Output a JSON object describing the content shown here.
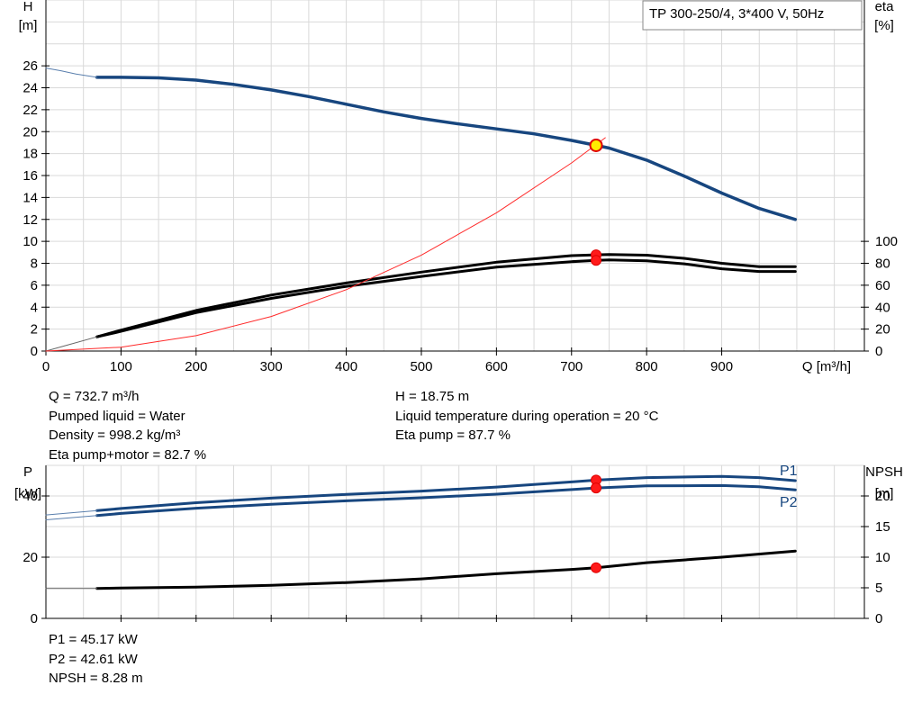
{
  "pump_title": "TP 300-250/4, 3*400 V, 50Hz",
  "chart_data": [
    {
      "type": "line",
      "title": "TP 300-250/4, 3*400 V, 50Hz",
      "xlabel": "Q [m³/h]",
      "x_ticks": [
        "0",
        "100",
        "200",
        "300",
        "400",
        "500",
        "600",
        "700",
        "800",
        "900"
      ],
      "xlim": [
        0,
        1090
      ],
      "ylabel_left": [
        "H",
        "[m]"
      ],
      "ylim_left": [
        0,
        32
      ],
      "y_ticks_left": [
        "0",
        "2",
        "4",
        "6",
        "8",
        "10",
        "12",
        "14",
        "16",
        "18",
        "20",
        "22",
        "24",
        "26"
      ],
      "ylabel_right": [
        "eta",
        "[%]"
      ],
      "ylim_right": [
        0,
        320
      ],
      "y_ticks_right": [
        "0",
        "20",
        "40",
        "60",
        "80",
        "100"
      ],
      "grid": true,
      "series": [
        {
          "key": "H",
          "color": "#17467f",
          "axis": "left",
          "x": [
            68,
            100,
            150,
            200,
            250,
            300,
            350,
            400,
            450,
            500,
            550,
            600,
            650,
            700,
            733,
            750,
            800,
            850,
            900,
            950,
            998
          ],
          "values": [
            24.95,
            24.95,
            24.9,
            24.7,
            24.3,
            23.8,
            23.2,
            22.5,
            21.8,
            21.2,
            20.7,
            20.25,
            19.8,
            19.2,
            18.75,
            18.5,
            17.4,
            15.95,
            14.4,
            13.0,
            12.0
          ]
        },
        {
          "key": "H_ext",
          "color": "#17467f",
          "axis": "left",
          "thin": true,
          "x": [
            0,
            20,
            40,
            68
          ],
          "values": [
            25.8,
            25.55,
            25.25,
            24.95
          ]
        },
        {
          "key": "eta_pump",
          "color": "#000000",
          "axis": "right",
          "x": [
            68,
            100,
            200,
            300,
            400,
            500,
            600,
            700,
            733,
            750,
            800,
            850,
            900,
            950,
            998
          ],
          "values": [
            13,
            19,
            37,
            51,
            62,
            72,
            81,
            87,
            87.7,
            88,
            87.4,
            84.5,
            80,
            77,
            77
          ]
        },
        {
          "key": "eta_pump_motor",
          "color": "#000000",
          "axis": "right",
          "x": [
            68,
            100,
            200,
            300,
            400,
            500,
            600,
            700,
            733,
            750,
            800,
            850,
            900,
            950,
            998
          ],
          "values": [
            13,
            18,
            35,
            48,
            59,
            68,
            76.5,
            81.5,
            82.7,
            83,
            82.3,
            79.5,
            75,
            72.5,
            72.5
          ]
        },
        {
          "key": "eta_ext",
          "color": "#000000",
          "axis": "right",
          "thin": true,
          "x": [
            0,
            68
          ],
          "values": [
            0,
            13
          ]
        },
        {
          "key": "system",
          "color": "#ff2a2a",
          "axis": "left",
          "thin": true,
          "x": [
            0,
            100,
            200,
            300,
            400,
            500,
            600,
            700,
            745
          ],
          "values": [
            0,
            0.35,
            1.4,
            3.15,
            5.6,
            8.75,
            12.6,
            17.15,
            19.45
          ]
        }
      ],
      "markers": [
        {
          "axis": "left",
          "x": 732.7,
          "y": 18.75,
          "style": "duty"
        },
        {
          "axis": "right",
          "x": 732.7,
          "y": 87.7,
          "style": "dot"
        },
        {
          "axis": "right",
          "x": 732.7,
          "y": 82.7,
          "style": "dot"
        }
      ]
    },
    {
      "type": "line",
      "xlim": [
        0,
        1090
      ],
      "ylabel_left": [
        "P",
        "[kW]"
      ],
      "ylim_left": [
        0,
        50
      ],
      "y_ticks_left": [
        "0",
        "20",
        "40"
      ],
      "ylabel_right": [
        "NPSH",
        "[m]"
      ],
      "ylim_right": [
        0,
        25
      ],
      "y_ticks_right": [
        "0",
        "5",
        "10",
        "15",
        "20"
      ],
      "grid": true,
      "series": [
        {
          "key": "P1",
          "name": "P1",
          "color": "#17467f",
          "axis": "left",
          "x": [
            68,
            100,
            200,
            300,
            400,
            500,
            600,
            700,
            733,
            800,
            900,
            950,
            998
          ],
          "values": [
            35.2,
            35.9,
            37.8,
            39.3,
            40.5,
            41.6,
            42.9,
            44.6,
            45.17,
            46.0,
            46.4,
            46.0,
            45.0
          ]
        },
        {
          "key": "P2",
          "name": "P2",
          "color": "#17467f",
          "axis": "left",
          "x": [
            68,
            100,
            200,
            300,
            400,
            500,
            600,
            700,
            733,
            800,
            900,
            950,
            998
          ],
          "values": [
            33.6,
            34.3,
            36.0,
            37.3,
            38.4,
            39.4,
            40.6,
            42.1,
            42.61,
            43.3,
            43.4,
            43.0,
            42.0
          ]
        },
        {
          "key": "P1_ext",
          "color": "#17467f",
          "axis": "left",
          "thin": true,
          "x": [
            0,
            68
          ],
          "values": [
            33.8,
            35.2
          ]
        },
        {
          "key": "P2_ext",
          "color": "#17467f",
          "axis": "left",
          "thin": true,
          "x": [
            0,
            68
          ],
          "values": [
            32.2,
            33.6
          ]
        },
        {
          "key": "NPSH",
          "color": "#000000",
          "axis": "right",
          "x": [
            68,
            100,
            200,
            300,
            400,
            500,
            600,
            700,
            733,
            800,
            900,
            998
          ],
          "values": [
            4.9,
            4.95,
            5.1,
            5.4,
            5.85,
            6.45,
            7.3,
            8.0,
            8.28,
            9.1,
            10.0,
            11.0
          ]
        },
        {
          "key": "NPSH_ext",
          "color": "#000000",
          "axis": "right",
          "thin": true,
          "x": [
            0,
            68
          ],
          "values": [
            4.9,
            4.9
          ]
        }
      ],
      "markers": [
        {
          "axis": "left",
          "x": 732.7,
          "y": 45.17,
          "style": "dot"
        },
        {
          "axis": "left",
          "x": 732.7,
          "y": 42.61,
          "style": "dot"
        },
        {
          "axis": "right",
          "x": 732.7,
          "y": 8.28,
          "style": "dot"
        }
      ]
    }
  ],
  "results": {
    "left": [
      "Q = 732.7 m³/h",
      "Pumped liquid = Water",
      "Density = 998.2 kg/m³",
      "Eta pump+motor = 82.7 %"
    ],
    "right": [
      "H = 18.75 m",
      "Liquid temperature during operation = 20 °C",
      "Eta pump = 87.7 %"
    ],
    "power": [
      "P1 = 45.17 kW",
      "P2 = 42.61 kW",
      "NPSH = 8.28 m"
    ]
  }
}
